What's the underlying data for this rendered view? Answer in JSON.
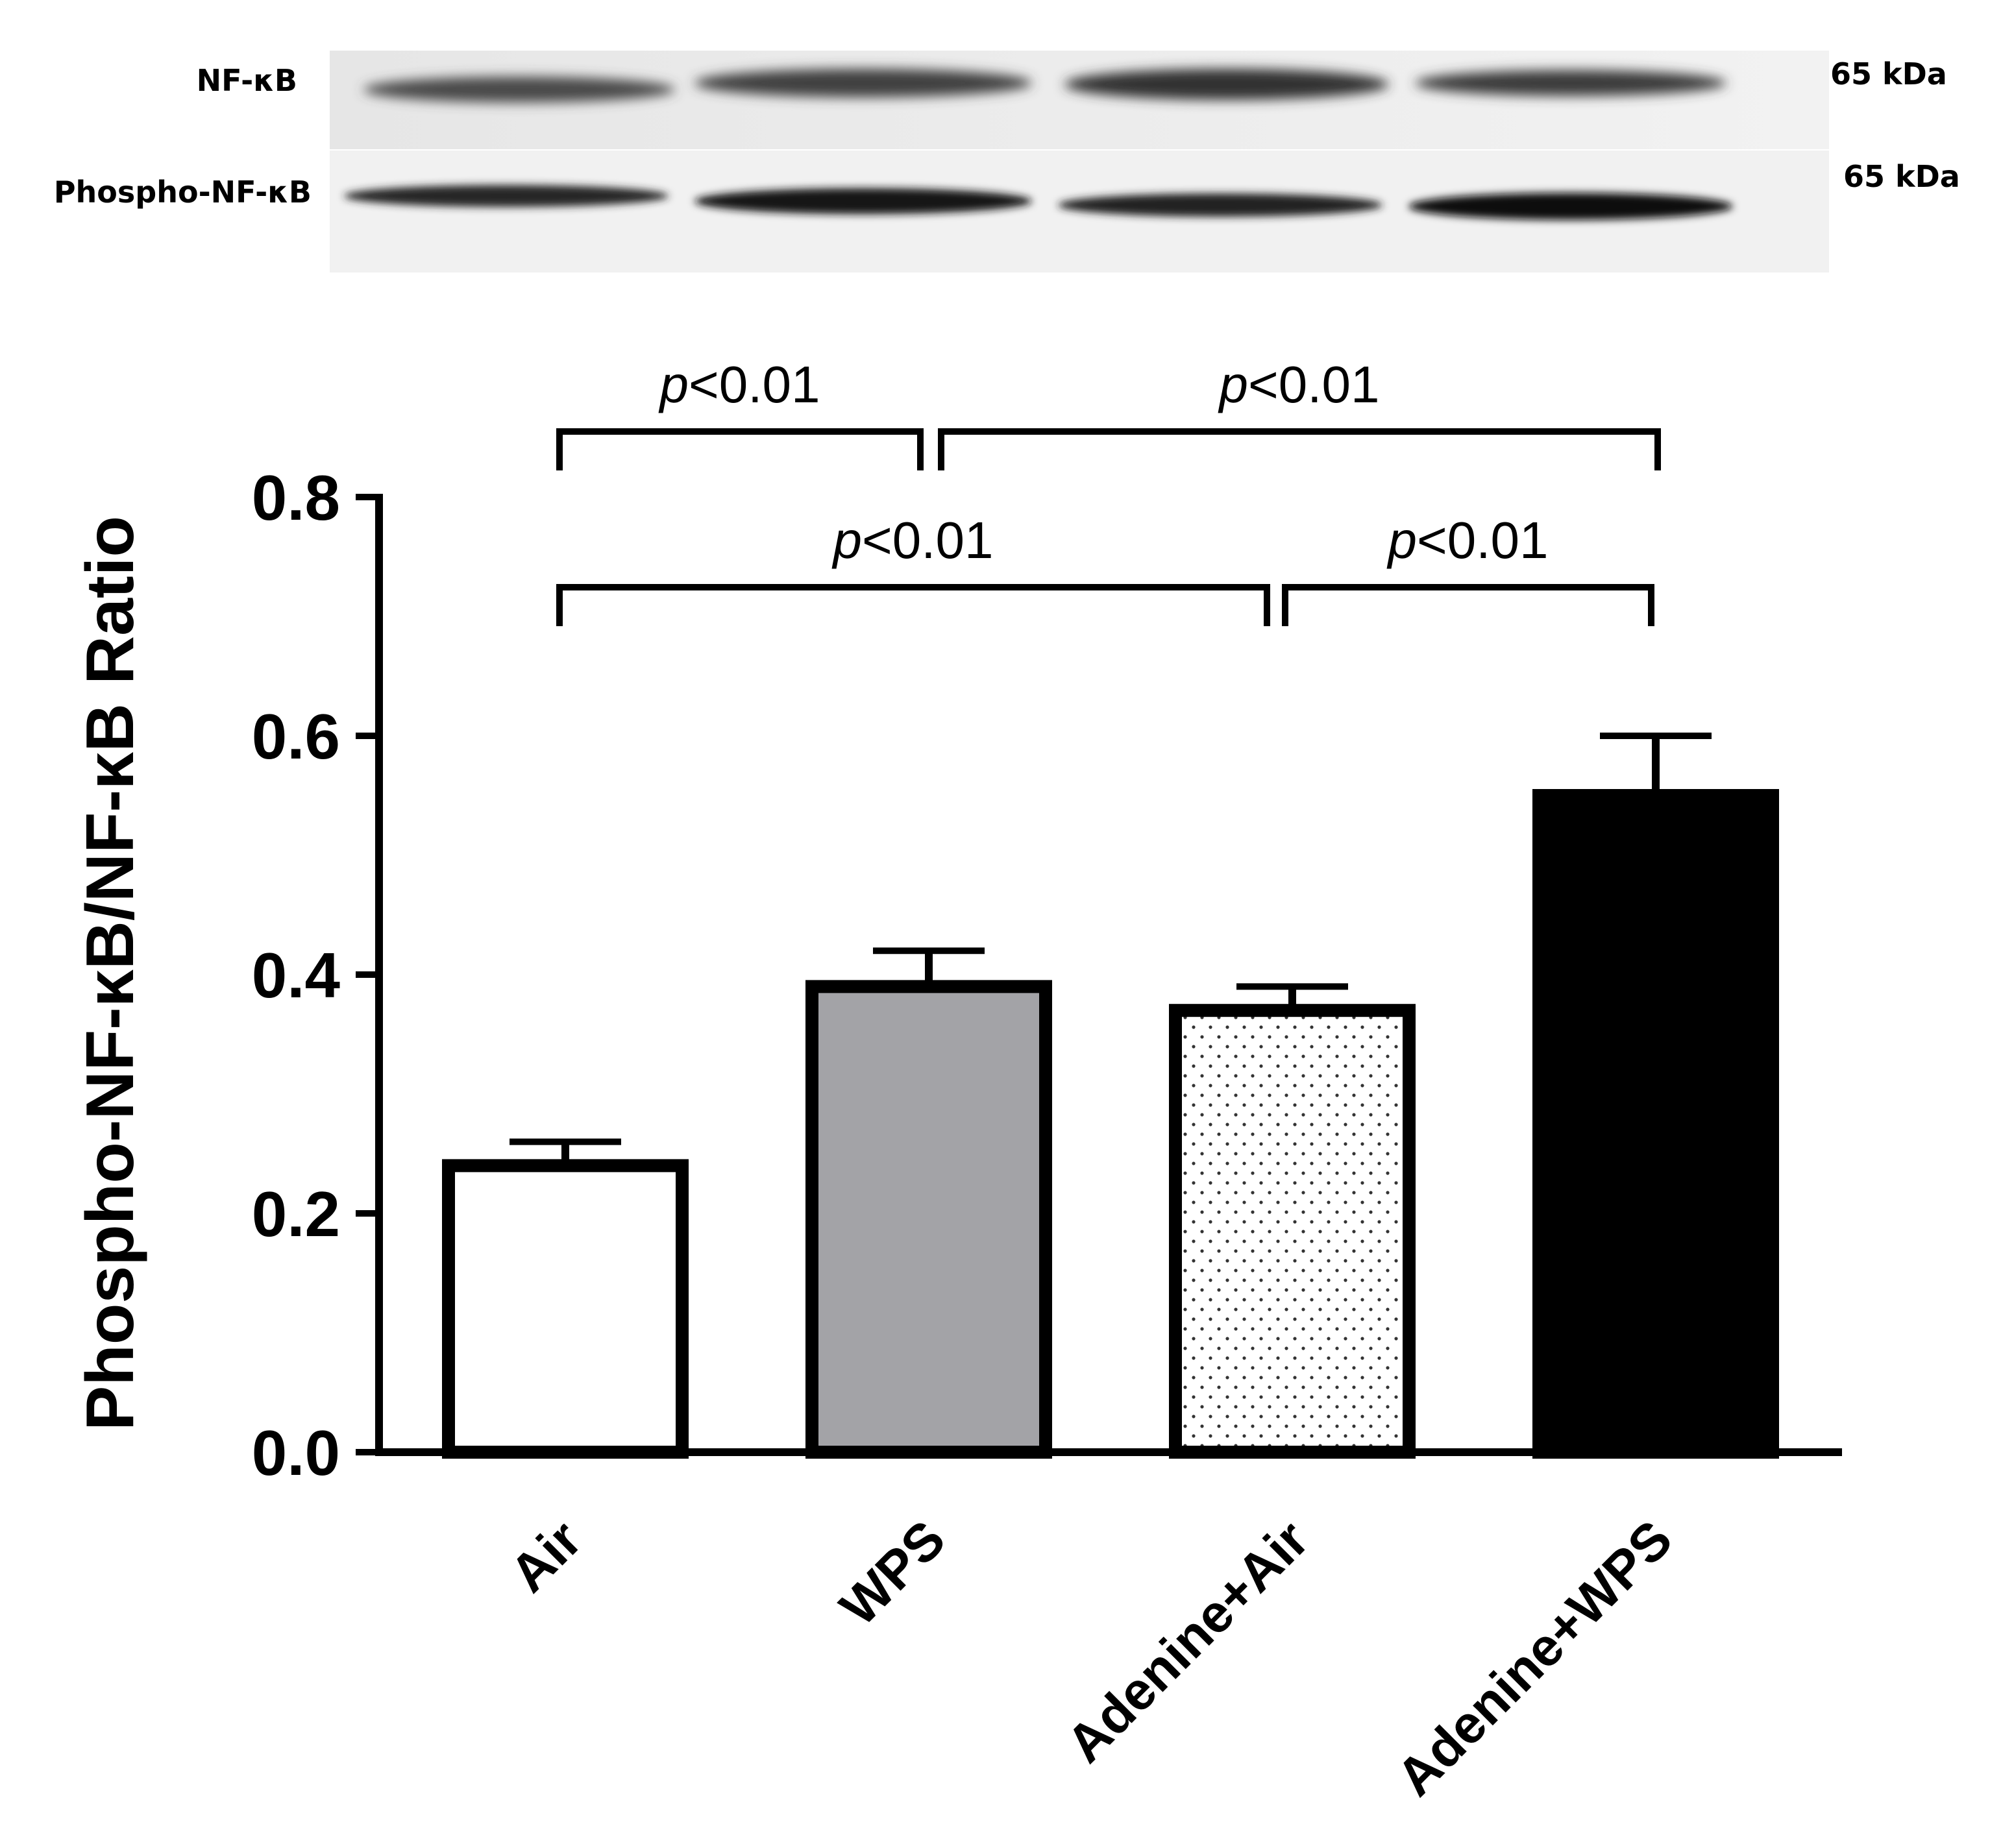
{
  "blot": {
    "rows": [
      {
        "label": "NF-κB",
        "size": "65 kDa"
      },
      {
        "label": "Phospho-NF-κB",
        "size": "65 kDa"
      }
    ]
  },
  "chart_data": {
    "type": "bar",
    "categories": [
      "Air",
      "WPS",
      "Adenine+Air",
      "Adenine+WPS"
    ],
    "values": [
      0.24,
      0.39,
      0.37,
      0.55
    ],
    "errors": [
      0.02,
      0.03,
      0.02,
      0.05
    ],
    "fills": [
      "#ffffff",
      "#a3a3a7",
      "dotted",
      "#000000"
    ],
    "ylabel": "Phospho-NF-κB/NF-κB Ratio",
    "xlabel": "",
    "ylim": [
      0,
      0.8
    ],
    "yticks": [
      "0.0",
      "0.2",
      "0.4",
      "0.6",
      "0.8"
    ],
    "grid": false,
    "significance": [
      {
        "from": 0,
        "to": 1,
        "p_prefix": "p",
        "p_rest": "<0.01"
      },
      {
        "from": 1,
        "to": 3,
        "p_prefix": "p",
        "p_rest": "<0.01"
      },
      {
        "from": 0,
        "to": 2,
        "p_prefix": "p",
        "p_rest": "<0.01"
      },
      {
        "from": 2,
        "to": 3,
        "p_prefix": "p",
        "p_rest": "<0.01"
      }
    ]
  }
}
